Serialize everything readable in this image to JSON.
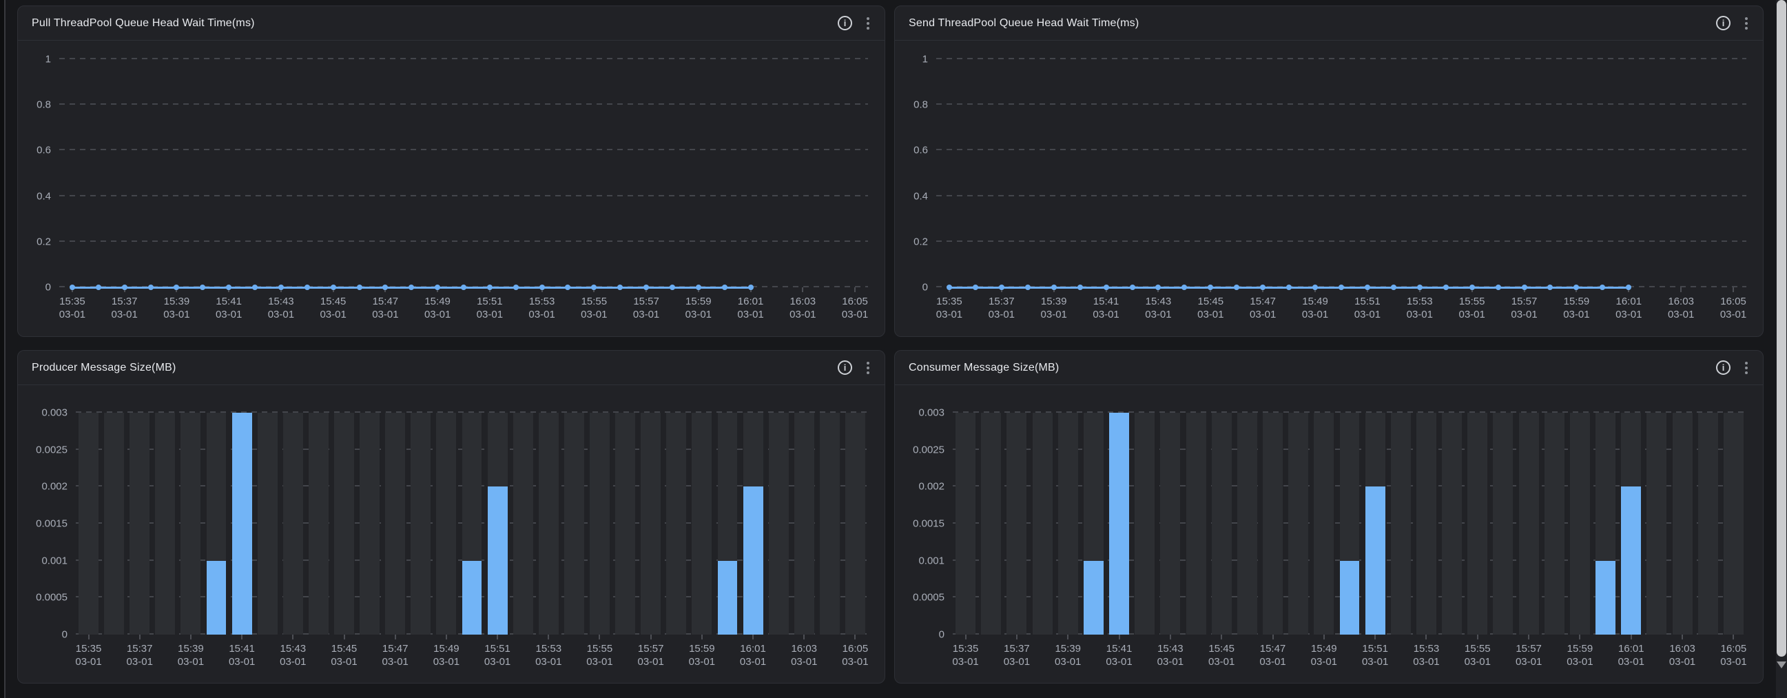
{
  "style": {
    "page_bg": "#17181b",
    "panel_bg": "#212226",
    "panel_border": "#2e3036",
    "series_blue": "#6cadf1",
    "bar_blue": "#72b4f6",
    "backdrop_bar": "#2c2e32",
    "grid_color": "#4d4f55",
    "axis_text": "#a9aeb8",
    "title_text": "#e8eaee"
  },
  "panels": [
    {
      "title": "Pull ThreadPool Queue Head Wait Time(ms)",
      "info_icon": "info",
      "menu_icon": "more-options"
    },
    {
      "title": "Send ThreadPool Queue Head Wait Time(ms)",
      "info_icon": "info",
      "menu_icon": "more-options"
    },
    {
      "title": "Producer Message Size(MB)",
      "info_icon": "info",
      "menu_icon": "more-options"
    },
    {
      "title": "Consumer Message Size(MB)",
      "info_icon": "info",
      "menu_icon": "more-options"
    }
  ],
  "x_axis": {
    "tick_labels": [
      "15:35",
      "15:37",
      "15:39",
      "15:41",
      "15:43",
      "15:45",
      "15:47",
      "15:49",
      "15:51",
      "15:53",
      "15:55",
      "15:57",
      "15:59",
      "16:01",
      "16:03",
      "16:05"
    ],
    "tick_date_line": "03-01",
    "minutes": [
      "15:35",
      "15:36",
      "15:37",
      "15:38",
      "15:39",
      "15:40",
      "15:41",
      "15:42",
      "15:43",
      "15:44",
      "15:45",
      "15:46",
      "15:47",
      "15:48",
      "15:49",
      "15:50",
      "15:51",
      "15:52",
      "15:53",
      "15:54",
      "15:55",
      "15:56",
      "15:57",
      "15:58",
      "15:59",
      "16:00",
      "16:01",
      "16:02",
      "16:03",
      "16:04",
      "16:05"
    ]
  },
  "chart_data": [
    {
      "type": "line",
      "title": "Pull ThreadPool Queue Head Wait Time(ms)",
      "x": [
        "15:35",
        "15:36",
        "15:37",
        "15:38",
        "15:39",
        "15:40",
        "15:41",
        "15:42",
        "15:43",
        "15:44",
        "15:45",
        "15:46",
        "15:47",
        "15:48",
        "15:49",
        "15:50",
        "15:51",
        "15:52",
        "15:53",
        "15:54",
        "15:55",
        "15:56",
        "15:57",
        "15:58",
        "15:59",
        "16:00",
        "16:01"
      ],
      "values": [
        0,
        0,
        0,
        0,
        0,
        0,
        0,
        0,
        0,
        0,
        0,
        0,
        0,
        0,
        0,
        0,
        0,
        0,
        0,
        0,
        0,
        0,
        0,
        0,
        0,
        0,
        0
      ],
      "x_date": "03-01",
      "ylim": [
        0,
        1
      ],
      "y_tick_labels": [
        "1",
        "0.8",
        "0.6",
        "0.4",
        "0.2",
        "0"
      ],
      "grid": "dashed-horizontal",
      "marker": "circle",
      "legend_position": "none"
    },
    {
      "type": "line",
      "title": "Send ThreadPool Queue Head Wait Time(ms)",
      "x": [
        "15:35",
        "15:36",
        "15:37",
        "15:38",
        "15:39",
        "15:40",
        "15:41",
        "15:42",
        "15:43",
        "15:44",
        "15:45",
        "15:46",
        "15:47",
        "15:48",
        "15:49",
        "15:50",
        "15:51",
        "15:52",
        "15:53",
        "15:54",
        "15:55",
        "15:56",
        "15:57",
        "15:58",
        "15:59",
        "16:00",
        "16:01"
      ],
      "values": [
        0,
        0,
        0,
        0,
        0,
        0,
        0,
        0,
        0,
        0,
        0,
        0,
        0,
        0,
        0,
        0,
        0,
        0,
        0,
        0,
        0,
        0,
        0,
        0,
        0,
        0,
        0
      ],
      "x_date": "03-01",
      "ylim": [
        0,
        1
      ],
      "y_tick_labels": [
        "1",
        "0.8",
        "0.6",
        "0.4",
        "0.2",
        "0"
      ],
      "grid": "dashed-horizontal",
      "marker": "circle",
      "legend_position": "none"
    },
    {
      "type": "bar",
      "title": "Producer Message Size(MB)",
      "x": [
        "15:35",
        "15:36",
        "15:37",
        "15:38",
        "15:39",
        "15:40",
        "15:41",
        "15:42",
        "15:43",
        "15:44",
        "15:45",
        "15:46",
        "15:47",
        "15:48",
        "15:49",
        "15:50",
        "15:51",
        "15:52",
        "15:53",
        "15:54",
        "15:55",
        "15:56",
        "15:57",
        "15:58",
        "15:59",
        "16:00",
        "16:01",
        "16:02",
        "16:03",
        "16:04",
        "16:05"
      ],
      "values": [
        0,
        0,
        0,
        0,
        0,
        0.001,
        0.003,
        0,
        0,
        0,
        0,
        0,
        0,
        0,
        0,
        0.001,
        0.002,
        0,
        0,
        0,
        0,
        0,
        0,
        0,
        0,
        0.001,
        0.002,
        0,
        0,
        0,
        0
      ],
      "x_date": "03-01",
      "ylim": [
        0,
        0.003
      ],
      "y_tick_labels": [
        "0.003",
        "0.0025",
        "0.002",
        "0.0015",
        "0.001",
        "0.0005",
        "0"
      ],
      "grid": "dashed-horizontal",
      "backdrop_bars": true,
      "legend_position": "none"
    },
    {
      "type": "bar",
      "title": "Consumer Message Size(MB)",
      "x": [
        "15:35",
        "15:36",
        "15:37",
        "15:38",
        "15:39",
        "15:40",
        "15:41",
        "15:42",
        "15:43",
        "15:44",
        "15:45",
        "15:46",
        "15:47",
        "15:48",
        "15:49",
        "15:50",
        "15:51",
        "15:52",
        "15:53",
        "15:54",
        "15:55",
        "15:56",
        "15:57",
        "15:58",
        "15:59",
        "16:00",
        "16:01",
        "16:02",
        "16:03",
        "16:04",
        "16:05"
      ],
      "values": [
        0,
        0,
        0,
        0,
        0,
        0.001,
        0.003,
        0,
        0,
        0,
        0,
        0,
        0,
        0,
        0,
        0.001,
        0.002,
        0,
        0,
        0,
        0,
        0,
        0,
        0,
        0,
        0.001,
        0.002,
        0,
        0,
        0,
        0
      ],
      "x_date": "03-01",
      "ylim": [
        0,
        0.003
      ],
      "y_tick_labels": [
        "0.003",
        "0.0025",
        "0.002",
        "0.0015",
        "0.001",
        "0.0005",
        "0"
      ],
      "grid": "dashed-horizontal",
      "backdrop_bars": true,
      "legend_position": "none"
    }
  ]
}
